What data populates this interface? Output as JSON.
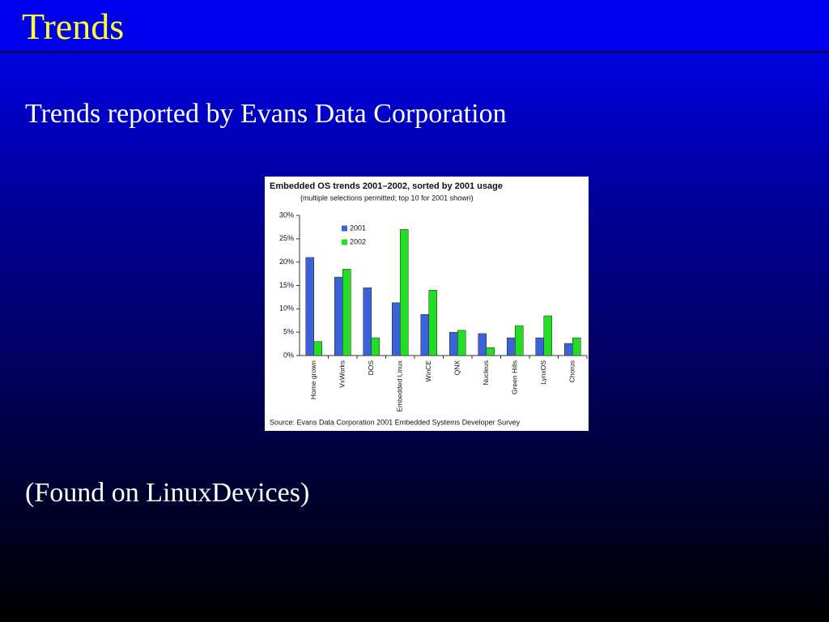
{
  "slide": {
    "title": "Trends",
    "subtitle": "Trends reported by Evans Data Corporation",
    "footer": "(Found on LinuxDevices)"
  },
  "chart_data": {
    "type": "bar",
    "title": "Embedded OS trends 2001–2002, sorted by 2001 usage",
    "subtitle": "(multiple selections permitted; top 10 for 2001 shown)",
    "source": "Source:  Evans Data Corporation 2001 Embedded Systems Developer Survey",
    "categories": [
      "Home grown",
      "VxWorks",
      "DOS",
      "Embedded Linux",
      "WinCE",
      "QNX",
      "Nucleus",
      "Green Hills",
      "LynxOS",
      "Chorus"
    ],
    "series": [
      {
        "name": "2001",
        "color": "#3b62d9",
        "values": [
          21,
          16.8,
          14.5,
          11.3,
          8.8,
          5,
          4.7,
          3.8,
          3.8,
          2.6
        ]
      },
      {
        "name": "2002",
        "color": "#22dd22",
        "values": [
          3,
          18.5,
          3.8,
          27,
          14,
          5.4,
          1.7,
          6.4,
          8.5,
          3.8
        ]
      }
    ],
    "ylim": [
      0,
      30
    ],
    "yticks": [
      {
        "value": 0,
        "label": "0%"
      },
      {
        "value": 5,
        "label": "5%"
      },
      {
        "value": 10,
        "label": "10%"
      },
      {
        "value": 15,
        "label": "15%"
      },
      {
        "value": 20,
        "label": "20%"
      },
      {
        "value": 25,
        "label": "25%"
      },
      {
        "value": 30,
        "label": "30%"
      }
    ],
    "grid": false
  }
}
